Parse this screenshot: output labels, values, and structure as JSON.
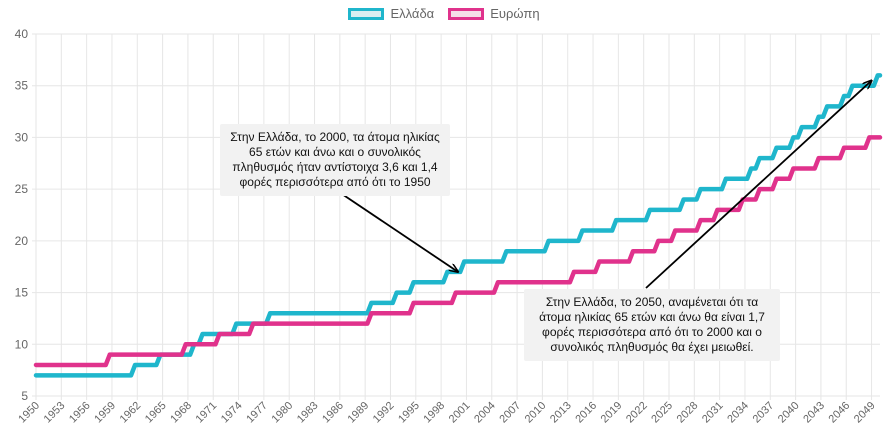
{
  "legend": {
    "greece": "Ελλάδα",
    "europe": "Ευρώπη"
  },
  "colors": {
    "greece": "#1fb6cc",
    "greece_fill": "#d9eef1",
    "europe": "#e0328c",
    "europe_fill": "#f5dde8",
    "grid": "#e6e6e6",
    "tick": "#666666",
    "arrow": "#000000"
  },
  "annotations": {
    "a2000": "Στην Ελλάδα, το 2000, τα άτομα ηλικίας 65 ετών και άνω και ο συνολικός πληθυσμός ήταν αντίστοιχα 3,6 και 1,4 φορές περισσότερα από ότι το 1950",
    "a2050": "Στην Ελλάδα, το 2050, αναμένεται ότι τα άτομα ηλικίας 65 ετών και άνω θα είναι 1,7 φορές περισσότερα από ότι το 2000 και ο συνολικός πληθυσμός θα έχει μειωθεί."
  },
  "chart_data": {
    "type": "line",
    "x_start": 1950,
    "x_end": 2050,
    "x_tick_labels": [
      "1950",
      "1953",
      "1956",
      "1959",
      "1962",
      "1965",
      "1968",
      "1971",
      "1974",
      "1977",
      "1980",
      "1983",
      "1986",
      "1989",
      "1992",
      "1995",
      "1998",
      "2001",
      "2004",
      "2007",
      "2010",
      "2013",
      "2016",
      "2019",
      "2022",
      "2025",
      "2028",
      "2031",
      "2034",
      "2037",
      "2040",
      "2043",
      "2046",
      "2049"
    ],
    "ylim": [
      5,
      40
    ],
    "y_ticks": [
      5,
      10,
      15,
      20,
      25,
      30,
      35,
      40
    ],
    "legend_position": "top-center",
    "series": [
      {
        "name": "Ελλάδα",
        "x": [
          1950,
          1951,
          1952,
          1953,
          1954,
          1955,
          1956,
          1957,
          1958,
          1959,
          1960,
          1961,
          1962,
          1963,
          1964,
          1965,
          1966,
          1967,
          1968,
          1969,
          1970,
          1971,
          1972,
          1973,
          1974,
          1975,
          1976,
          1977,
          1978,
          1979,
          1980,
          1981,
          1982,
          1983,
          1984,
          1985,
          1986,
          1987,
          1988,
          1989,
          1990,
          1991,
          1992,
          1993,
          1994,
          1995,
          1996,
          1997,
          1998,
          1999,
          2000,
          2001,
          2002,
          2003,
          2004,
          2005,
          2006,
          2007,
          2008,
          2009,
          2010,
          2011,
          2012,
          2013,
          2014,
          2015,
          2016,
          2017,
          2018,
          2019,
          2020,
          2021,
          2022,
          2023,
          2024,
          2025,
          2026,
          2027,
          2028,
          2029,
          2030,
          2031,
          2032,
          2033,
          2034,
          2035,
          2036,
          2037,
          2038,
          2039,
          2040,
          2041,
          2042,
          2043,
          2044,
          2045,
          2046,
          2047,
          2048,
          2049,
          2050
        ],
        "values": [
          7,
          7,
          7,
          7,
          7,
          7,
          7,
          7,
          7,
          7,
          7,
          7,
          8,
          8,
          8,
          9,
          9,
          9,
          9,
          10,
          11,
          11,
          11,
          11,
          12,
          12,
          12,
          12,
          13,
          13,
          13,
          13,
          13,
          13,
          13,
          13,
          13,
          13,
          13,
          13,
          14,
          14,
          14,
          15,
          15,
          16,
          16,
          16,
          16,
          17,
          17,
          18,
          18,
          18,
          18,
          18,
          19,
          19,
          19,
          19,
          19,
          20,
          20,
          20,
          20,
          21,
          21,
          21,
          21,
          22,
          22,
          22,
          22,
          23,
          23,
          23,
          23,
          24,
          24,
          25,
          25,
          25,
          26,
          26,
          26,
          27,
          28,
          28,
          29,
          29,
          30,
          31,
          31,
          32,
          33,
          33,
          34,
          35,
          35,
          35,
          36
        ]
      },
      {
        "name": "Ευρώπη",
        "x": [
          1950,
          1951,
          1952,
          1953,
          1954,
          1955,
          1956,
          1957,
          1958,
          1959,
          1960,
          1961,
          1962,
          1963,
          1964,
          1965,
          1966,
          1967,
          1968,
          1969,
          1970,
          1971,
          1972,
          1973,
          1974,
          1975,
          1976,
          1977,
          1978,
          1979,
          1980,
          1981,
          1982,
          1983,
          1984,
          1985,
          1986,
          1987,
          1988,
          1989,
          1990,
          1991,
          1992,
          1993,
          1994,
          1995,
          1996,
          1997,
          1998,
          1999,
          2000,
          2001,
          2002,
          2003,
          2004,
          2005,
          2006,
          2007,
          2008,
          2009,
          2010,
          2011,
          2012,
          2013,
          2014,
          2015,
          2016,
          2017,
          2018,
          2019,
          2020,
          2021,
          2022,
          2023,
          2024,
          2025,
          2026,
          2027,
          2028,
          2029,
          2030,
          2031,
          2032,
          2033,
          2034,
          2035,
          2036,
          2037,
          2038,
          2039,
          2040,
          2041,
          2042,
          2043,
          2044,
          2045,
          2046,
          2047,
          2048,
          2049,
          2050
        ],
        "values": [
          8,
          8,
          8,
          8,
          8,
          8,
          8,
          8,
          8,
          9,
          9,
          9,
          9,
          9,
          9,
          9,
          9,
          9,
          10,
          10,
          10,
          10,
          11,
          11,
          11,
          11,
          12,
          12,
          12,
          12,
          12,
          12,
          12,
          12,
          12,
          12,
          12,
          12,
          12,
          12,
          13,
          13,
          13,
          13,
          13,
          14,
          14,
          14,
          14,
          14,
          15,
          15,
          15,
          15,
          15,
          16,
          16,
          16,
          16,
          16,
          16,
          16,
          16,
          16,
          17,
          17,
          17,
          18,
          18,
          18,
          18,
          19,
          19,
          19,
          20,
          20,
          21,
          21,
          21,
          22,
          22,
          23,
          23,
          23,
          24,
          24,
          25,
          25,
          26,
          26,
          27,
          27,
          27,
          28,
          28,
          28,
          29,
          29,
          29,
          30,
          30
        ]
      }
    ]
  }
}
